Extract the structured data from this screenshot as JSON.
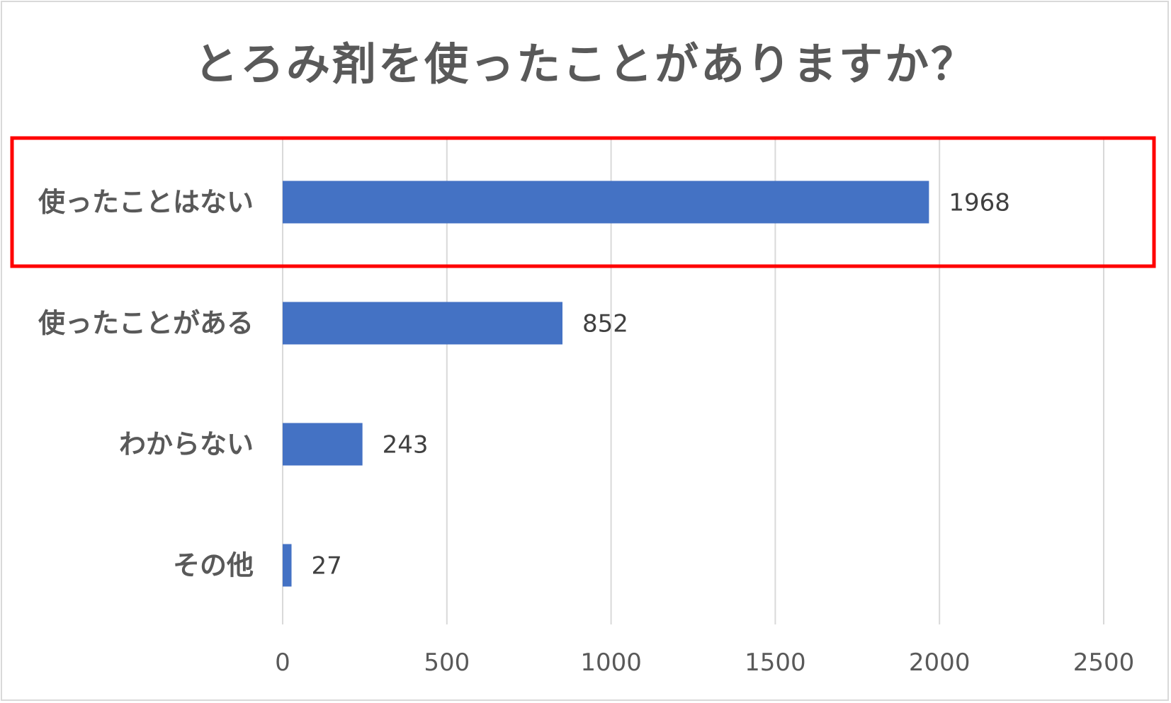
{
  "chart_data": {
    "type": "bar",
    "orientation": "horizontal",
    "title": "とろみ剤を使ったことがありますか？",
    "categories": [
      "使ったことはない",
      "使ったことがある",
      "わからない",
      "その他"
    ],
    "values": [
      1968,
      852,
      243,
      27
    ],
    "data_labels": [
      "1968",
      "852",
      "243",
      "27"
    ],
    "xlim": [
      0,
      2500
    ],
    "x_ticks": [
      0,
      500,
      1000,
      1500,
      2000,
      2500
    ],
    "x_tick_labels": [
      "0",
      "500",
      "1000",
      "1500",
      "2000",
      "2500"
    ],
    "xlabel": "",
    "ylabel": "",
    "grid": "vertical",
    "legend": "none",
    "bar_color": "#4472c4",
    "highlight": {
      "category": "使ったことはない",
      "color": "#ff0000"
    }
  }
}
